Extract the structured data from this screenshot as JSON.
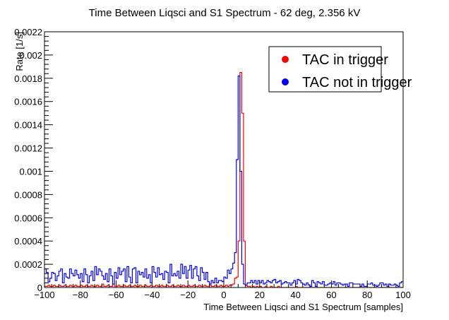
{
  "chart_data": {
    "type": "histogram",
    "title": "Time Between Liqsci and S1 Spectrum - 62 deg, 2.356 kV",
    "xlabel": "Time Between Liqsci and S1 Spectrum [samples]",
    "ylabel": "Rate [1/s]",
    "xlim": [
      -100,
      100
    ],
    "ylim": [
      0,
      0.0022
    ],
    "x_ticks": [
      "−100",
      "−80",
      "−60",
      "−40",
      "−20",
      "0",
      "20",
      "40",
      "60",
      "80",
      "100"
    ],
    "y_ticks": [
      "0",
      "0.0002",
      "0.0004",
      "0.0006",
      "0.0008",
      "0.001",
      "0.0012",
      "0.0014",
      "0.0016",
      "0.0018",
      "0.002",
      "0.0022"
    ],
    "bin_start": -100,
    "bin_width": 1,
    "legend_position": "top-right",
    "series": [
      {
        "name": "TAC in trigger",
        "color": "#ff0000",
        "values": [
          1e-05,
          1e-05,
          2e-05,
          1e-05,
          1e-05,
          2e-05,
          1e-05,
          1e-05,
          2e-05,
          1e-05,
          1e-05,
          2e-05,
          1e-05,
          1e-05,
          2e-05,
          1e-05,
          1e-05,
          2e-05,
          1e-05,
          1e-05,
          2e-05,
          1e-05,
          1e-05,
          2e-05,
          1e-05,
          1e-05,
          2e-05,
          1e-05,
          1e-05,
          2e-05,
          1e-05,
          1e-05,
          3e-05,
          1e-05,
          1e-05,
          2e-05,
          1e-05,
          1e-05,
          3e-05,
          1e-05,
          1e-05,
          2e-05,
          1e-05,
          1e-05,
          2e-05,
          1e-05,
          1e-05,
          2e-05,
          1e-05,
          1e-05,
          2e-05,
          1e-05,
          1e-05,
          2e-05,
          1e-05,
          1e-05,
          2e-05,
          1e-05,
          1e-05,
          2e-05,
          1e-05,
          1e-05,
          2e-05,
          1e-05,
          1e-05,
          2e-05,
          1e-05,
          1e-05,
          2e-05,
          1e-05,
          1e-05,
          2e-05,
          1e-05,
          1e-05,
          2e-05,
          1e-05,
          1e-05,
          2e-05,
          1e-05,
          1e-05,
          2e-05,
          1e-05,
          1e-05,
          2e-05,
          1e-05,
          1e-05,
          2e-05,
          1e-05,
          1e-05,
          2e-05,
          1e-05,
          1e-05,
          2e-05,
          1e-05,
          1e-05,
          2e-05,
          1e-05,
          1e-05,
          2e-05,
          1e-05,
          1e-05,
          2e-05,
          1e-05,
          2e-05,
          2e-05,
          3e-05,
          8e-05,
          9e-05,
          0.0004,
          0.00185,
          0.0015,
          0.0004,
          2e-05,
          1e-05,
          1e-05,
          0.0,
          1e-05,
          0.0,
          1e-05,
          0.0,
          1e-05,
          0.0,
          0.0,
          1e-05,
          0.0,
          0.0,
          1e-05,
          0.0,
          0.0,
          0.0,
          1e-05,
          0.0,
          0.0,
          0.0,
          0.0,
          0.0,
          0.0,
          0.0,
          0.0,
          0.0,
          1e-05,
          0.0,
          0.0,
          0.0,
          0.0,
          0.0,
          0.0,
          0.0,
          0.0,
          0.0,
          0.0,
          0.0,
          0.0,
          0.0,
          0.0,
          0.0,
          0.0,
          0.0,
          0.0,
          0.0,
          0.0,
          0.0,
          0.0,
          0.0,
          0.0,
          0.0,
          0.0,
          0.0,
          0.0,
          0.0,
          0.0,
          0.0,
          0.0,
          0.0,
          0.0,
          0.0,
          0.0,
          0.0,
          0.0,
          0.0,
          0.0,
          0.0,
          0.0,
          0.0,
          0.0,
          0.0,
          0.0,
          0.0,
          0.0,
          0.0,
          0.0,
          0.0,
          0.0,
          0.0,
          0.0,
          0.0,
          0.0,
          0.0,
          0.0,
          0.0
        ]
      },
      {
        "name": "TAC not in trigger",
        "color": "#0000ff",
        "values": [
          0.00016,
          0.00013,
          5e-05,
          8e-05,
          0.00013,
          0.00012,
          6e-05,
          0.0001,
          0.00014,
          0.00016,
          4e-05,
          0.00012,
          9e-05,
          8e-05,
          0.00016,
          0.00012,
          0.0001,
          0.00015,
          0.00011,
          8e-05,
          0.00012,
          5e-05,
          0.00016,
          0.00011,
          4e-05,
          0.0001,
          0.00014,
          6e-05,
          0.00018,
          0.00011,
          0.00016,
          0.00014,
          0.0001,
          7e-05,
          0.00012,
          5e-05,
          0.00016,
          0.0001,
          3e-05,
          0.00013,
          8e-05,
          0.00017,
          0.00011,
          0.00014,
          0.00016,
          5e-05,
          0.00018,
          9e-05,
          4e-05,
          0.00016,
          0.00017,
          4e-05,
          0.00014,
          0.00011,
          0.00013,
          9e-05,
          0.00016,
          8e-05,
          0.00011,
          4e-05,
          0.00018,
          0.00013,
          9e-05,
          0.00017,
          0.00011,
          0.00012,
          7e-05,
          0.00014,
          0.00013,
          4e-05,
          0.0002,
          0.0001,
          0.00012,
          0.0001,
          0.00014,
          8e-05,
          0.0002,
          0.00012,
          0.00018,
          8e-05,
          0.00015,
          0.00019,
          8e-05,
          0.00016,
          0.00018,
          0.0001,
          6e-05,
          0.00017,
          0.00013,
          7e-05,
          0.00013,
          5e-05,
          3e-05,
          6e-05,
          4e-05,
          8e-05,
          4e-05,
          6e-05,
          6e-05,
          5e-05,
          9e-05,
          8e-05,
          0.00015,
          0.00012,
          0.00016,
          0.00021,
          0.0003,
          0.0011,
          0.00182,
          0.001,
          0.0002,
          3e-05,
          2e-05,
          4e-05,
          4e-05,
          6e-05,
          4e-05,
          6e-05,
          3e-05,
          6e-05,
          4e-05,
          6e-05,
          3e-05,
          4e-05,
          6e-05,
          5e-05,
          4e-05,
          6e-05,
          7e-05,
          4e-05,
          5e-05,
          6e-05,
          3e-05,
          4e-05,
          5e-05,
          4e-05,
          4e-05,
          2e-05,
          4e-05,
          6e-05,
          3e-05,
          7e-05,
          6e-05,
          4e-05,
          3e-05,
          2e-05,
          4e-05,
          2e-05,
          1e-05,
          6e-05,
          4e-05,
          1e-05,
          5e-05,
          4e-05,
          3e-05,
          5e-05,
          2e-05,
          2e-05,
          3e-05,
          4e-05,
          3e-05,
          5e-05,
          2e-05,
          4e-05,
          4e-05,
          3e-05,
          2e-05,
          3e-05,
          3e-05,
          1e-05,
          4e-05,
          4e-05,
          3e-05,
          3e-05,
          3e-05,
          3e-05,
          1e-05,
          3e-05,
          1e-05,
          1e-05,
          3e-05,
          3e-05,
          4e-05,
          2e-05,
          2e-05,
          1e-05,
          2e-05,
          4e-05,
          4e-05,
          2e-05,
          3e-05,
          1e-05,
          3e-05,
          2e-05,
          2e-05,
          3e-05,
          2e-05,
          1e-05,
          4e-05,
          5e-05
        ]
      }
    ]
  }
}
